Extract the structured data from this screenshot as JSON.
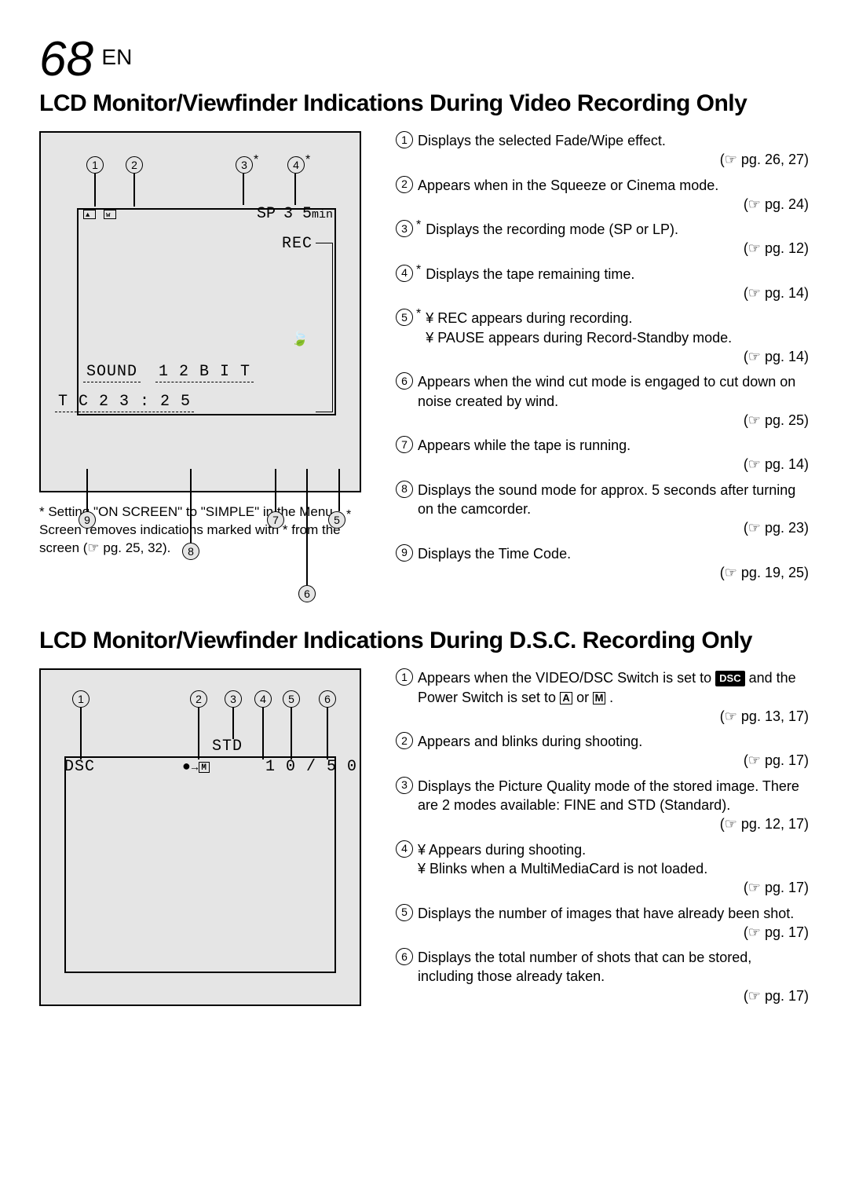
{
  "page": {
    "num": "68",
    "lang": "EN"
  },
  "section1": {
    "title": "LCD Monitor/Viewfinder Indications During Video Recording Only",
    "note": "* Setting \"ON SCREEN\" to \"SIMPLE\" in the Menu Screen removes indications marked with * from the screen (☞ pg. 25, 32).",
    "lcd": {
      "sp": "SP",
      "time_remaining": "3 5",
      "time_unit": "min",
      "rec": "REC",
      "sound": "SOUND",
      "sound_mode": "1 2 B I T",
      "tc_label": "T C",
      "tc_value": "2 3 : 2 5"
    },
    "top_callouts": [
      "1",
      "2",
      "3",
      "4"
    ],
    "bot_callouts": [
      "9",
      "8",
      "7",
      "6",
      "5"
    ],
    "items": [
      {
        "n": "1",
        "star": false,
        "text": "Displays the selected Fade/Wipe effect.",
        "pg": "pg. 26, 27"
      },
      {
        "n": "2",
        "star": false,
        "text": "Appears when in the Squeeze or Cinema mode.",
        "pg": "pg. 24"
      },
      {
        "n": "3",
        "star": true,
        "text": "Displays the recording mode (SP or LP).",
        "pg": "pg. 12"
      },
      {
        "n": "4",
        "star": true,
        "text": "Displays the tape remaining time.",
        "pg": "pg. 14"
      },
      {
        "n": "5",
        "star": true,
        "bullets": [
          "REC appears during recording.",
          "PAUSE appears during Record-Standby mode."
        ],
        "pg": "pg. 14"
      },
      {
        "n": "6",
        "star": false,
        "text": "Appears when the wind cut mode is engaged to cut down on noise created by wind.",
        "pg": "pg. 25"
      },
      {
        "n": "7",
        "star": false,
        "text": "Appears while the tape is running.",
        "pg": "pg. 14"
      },
      {
        "n": "8",
        "star": false,
        "text": "Displays the sound mode for approx. 5 seconds after turning on the camcorder.",
        "pg": "pg. 23"
      },
      {
        "n": "9",
        "star": false,
        "text": "Displays the Time Code.",
        "pg": "pg. 19, 25"
      }
    ]
  },
  "section2": {
    "title": "LCD Monitor/Viewfinder Indications During D.S.C. Recording Only",
    "lcd": {
      "dsc": "DSC",
      "std": "STD",
      "count": "1 0 / 5 0"
    },
    "top_callouts": [
      "1",
      "2",
      "3",
      "4",
      "5",
      "6"
    ],
    "items": [
      {
        "n": "1",
        "html": "Appears when the VIDEO/DSC Switch is set to <span class='dsc-badge'>DSC</span> and the Power Switch is set to <span class='boxed'>A</span> or <span class='boxed'>M</span> .",
        "pg": "pg. 13, 17"
      },
      {
        "n": "2",
        "text": "Appears and blinks during shooting.",
        "pg": "pg. 17"
      },
      {
        "n": "3",
        "text": "Displays the Picture Quality mode of the stored image. There are 2 modes available: FINE and STD (Standard).",
        "pg": "pg. 12, 17"
      },
      {
        "n": "4",
        "bullets": [
          "Appears during shooting.",
          "Blinks when a MultiMediaCard is not loaded."
        ],
        "pg": "pg. 17"
      },
      {
        "n": "5",
        "text": "Displays the number of images that have already been shot.",
        "pg": "pg. 17"
      },
      {
        "n": "6",
        "text": "Displays the total number of shots that can be stored, including those already taken.",
        "pg": "pg. 17"
      }
    ]
  }
}
